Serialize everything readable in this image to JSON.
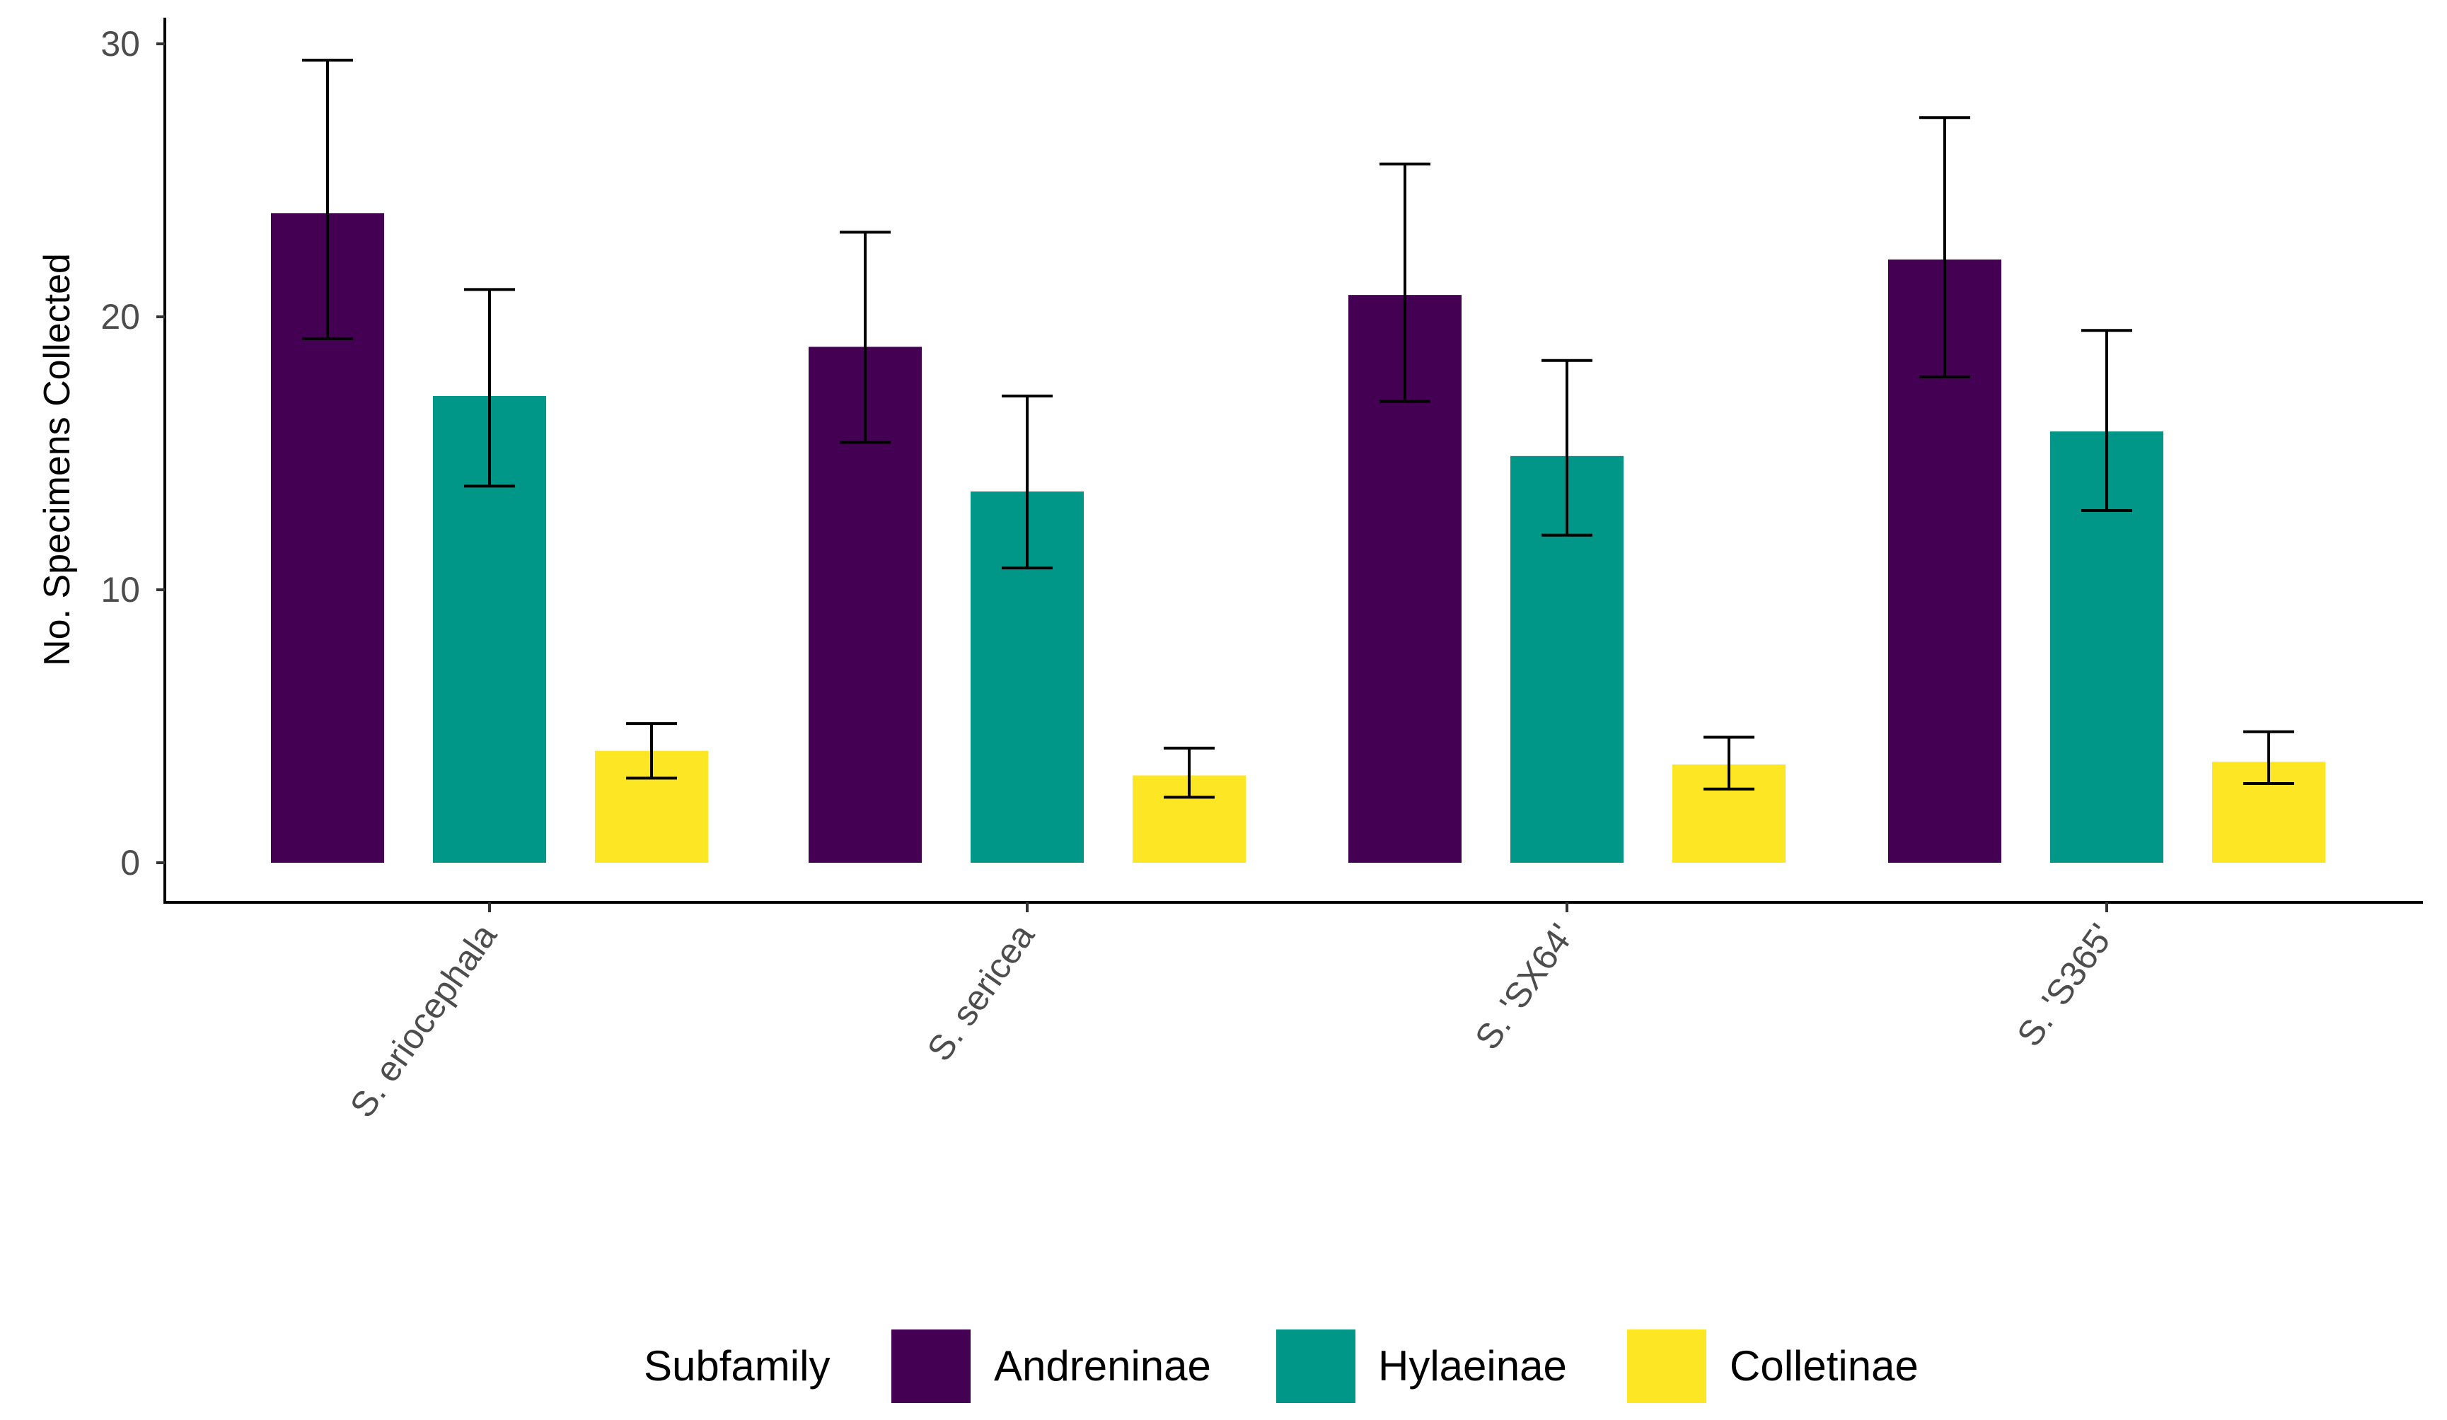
{
  "chart_data": {
    "type": "bar",
    "title": "",
    "xlabel": "",
    "ylabel": "No. Specimens Collected",
    "ylim": [
      0,
      30
    ],
    "yticks": [
      "0",
      "10",
      "20",
      "30"
    ],
    "grid": false,
    "legend_title": "Subfamily",
    "legend_position": "bottom",
    "categories": [
      "S. eriocephala",
      "S. sericea",
      "S. 'SX64'",
      "S. 'S365'"
    ],
    "series": [
      {
        "name": "Andreninae",
        "color": "#440154",
        "values": [
          23.8,
          18.9,
          20.8,
          22.1
        ],
        "err_low": [
          19.2,
          15.4,
          16.9,
          17.8
        ],
        "err_high": [
          29.4,
          23.1,
          25.6,
          27.3
        ]
      },
      {
        "name": "Hylaeinae",
        "color": "#009688",
        "values": [
          17.1,
          13.6,
          14.9,
          15.8
        ],
        "err_low": [
          13.8,
          10.8,
          12.0,
          12.9
        ],
        "err_high": [
          21.0,
          17.1,
          18.4,
          19.5
        ]
      },
      {
        "name": "Colletinae",
        "color": "#FDE725",
        "values": [
          4.1,
          3.2,
          3.6,
          3.7
        ],
        "err_low": [
          3.1,
          2.4,
          2.7,
          2.9
        ],
        "err_high": [
          5.1,
          4.2,
          4.6,
          4.8
        ]
      }
    ]
  }
}
